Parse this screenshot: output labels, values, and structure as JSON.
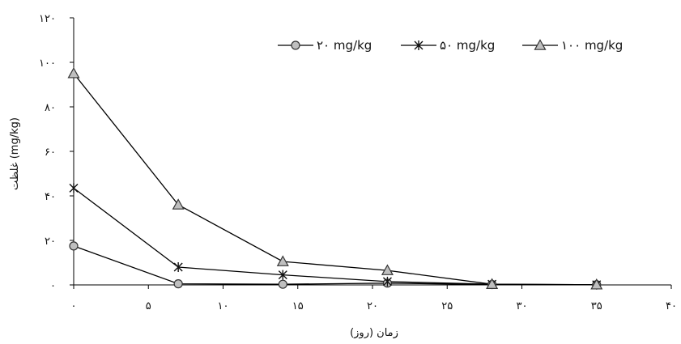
{
  "chart_data": {
    "type": "line",
    "xlabel": "زمان (روز)",
    "ylabel": "غلظت (mg/kg)",
    "xlim": [
      0,
      40
    ],
    "ylim": [
      0,
      120
    ],
    "x_ticks": [
      0,
      5,
      10,
      15,
      20,
      25,
      30,
      35,
      40
    ],
    "x_tick_labels": [
      "۰",
      "۵",
      "۱۰",
      "۱۵",
      "۲۰",
      "۲۵",
      "۳۰",
      "۳۵",
      "۴۰"
    ],
    "y_ticks": [
      0,
      20,
      40,
      60,
      80,
      100,
      120
    ],
    "y_tick_labels": [
      "۰",
      "۲۰",
      "۴۰",
      "۶۰",
      "۸۰",
      "۱۰۰",
      "۱۲۰"
    ],
    "grid": false,
    "legend_position": "top-right",
    "x": [
      0,
      7,
      14,
      21,
      28,
      35
    ],
    "series": [
      {
        "name": "۲۰ mg/kg",
        "marker": "circle",
        "values": [
          17.5,
          0.5,
          0.3,
          0.8,
          0.2,
          0.1
        ]
      },
      {
        "name": "۵۰ mg/kg",
        "marker": "star",
        "values": [
          43.5,
          8,
          4.5,
          1.5,
          0.3,
          0.1
        ]
      },
      {
        "name": "۱۰۰ mg/kg",
        "marker": "triangle",
        "values": [
          95,
          36,
          10.5,
          6.5,
          0.3,
          0.1
        ]
      }
    ],
    "colors": {
      "line": "#000000",
      "marker_fill": "#bfbfbf",
      "marker_stroke": "#333333"
    }
  }
}
